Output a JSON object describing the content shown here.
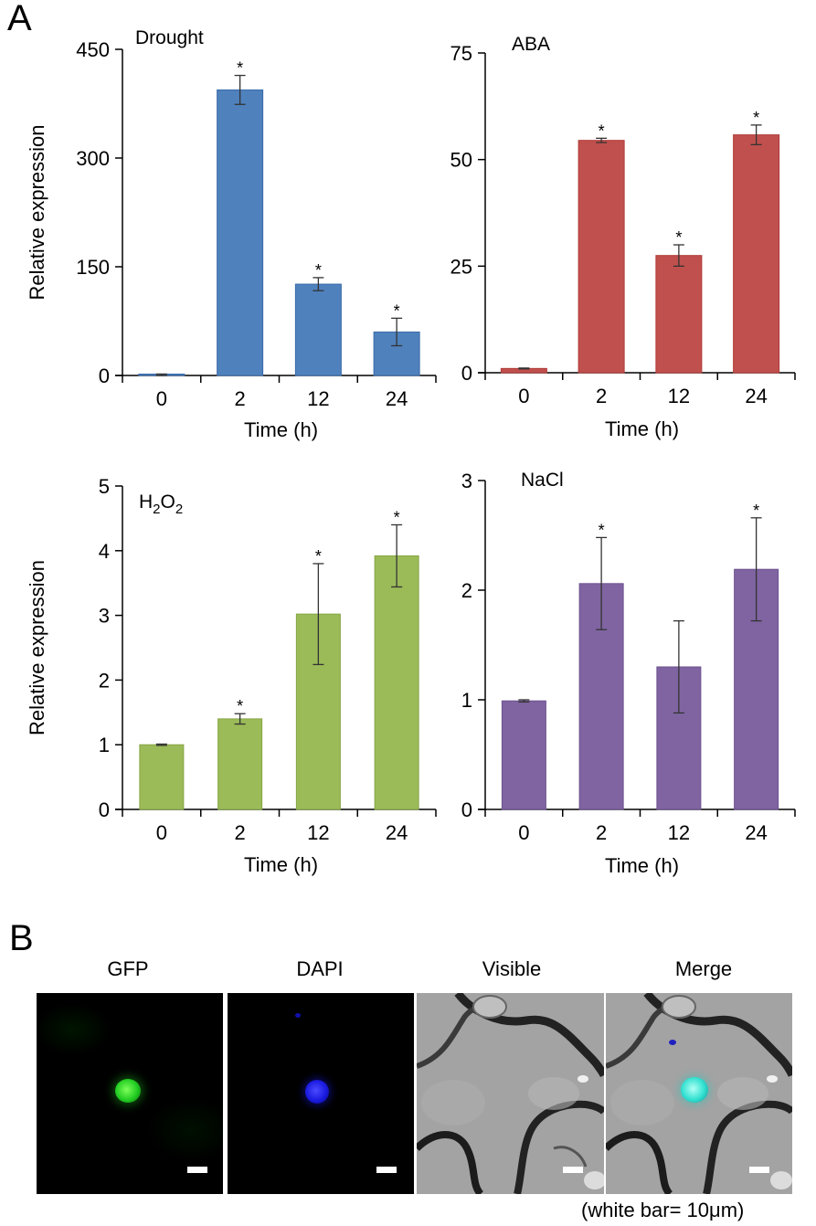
{
  "figure": {
    "panel_a_label": "A",
    "panel_b_label": "B"
  },
  "chart_data": [
    {
      "type": "bar",
      "title": "Drought",
      "categories": [
        "0",
        "2",
        "12",
        "24"
      ],
      "values": [
        1,
        394,
        126,
        60
      ],
      "errors": [
        1,
        20,
        9,
        19
      ],
      "significant": [
        false,
        true,
        true,
        true
      ],
      "significance_marker": "*",
      "xlabel": "Time (h)",
      "ylabel": "Relative expression",
      "ylim": [
        0,
        450
      ],
      "yticks": [
        0,
        150,
        300,
        450
      ],
      "color": "#4f81bd",
      "edge": "#3a6aa8"
    },
    {
      "type": "bar",
      "title": "ABA",
      "categories": [
        "0",
        "2",
        "12",
        "24"
      ],
      "values": [
        1,
        54.5,
        27.5,
        55.8
      ],
      "errors": [
        0.1,
        0.5,
        2.5,
        2.3
      ],
      "significant": [
        false,
        true,
        true,
        true
      ],
      "significance_marker": "*",
      "xlabel": "Time (h)",
      "ylabel": "",
      "ylim": [
        0,
        75
      ],
      "yticks": [
        0,
        25,
        50,
        75
      ],
      "color": "#c0504d",
      "edge": "#b03a37"
    },
    {
      "type": "bar",
      "title_main": "H",
      "title_sub1": "2",
      "title_mid": "O",
      "title_sub2": "2",
      "categories": [
        "0",
        "2",
        "12",
        "24"
      ],
      "values": [
        1,
        1.4,
        3.02,
        3.92
      ],
      "errors": [
        0.01,
        0.08,
        0.78,
        0.48
      ],
      "significant": [
        false,
        true,
        true,
        true
      ],
      "significance_marker": "*",
      "xlabel": "Time (h)",
      "ylabel": "Relative expression",
      "ylim": [
        0,
        5
      ],
      "yticks": [
        0,
        1,
        2,
        3,
        4,
        5
      ],
      "color": "#9bbb59",
      "edge": "#86a543"
    },
    {
      "type": "bar",
      "title": "NaCl",
      "categories": [
        "0",
        "2",
        "12",
        "24"
      ],
      "values": [
        0.99,
        2.06,
        1.3,
        2.19
      ],
      "errors": [
        0.01,
        0.42,
        0.42,
        0.47
      ],
      "significant": [
        false,
        true,
        false,
        true
      ],
      "significance_marker": "*",
      "xlabel": "Time (h)",
      "ylabel": "",
      "ylim": [
        0,
        3
      ],
      "yticks": [
        0,
        1,
        2,
        3
      ],
      "color": "#8064a2",
      "edge": "#6c518f"
    }
  ],
  "microscopy": {
    "labels": [
      "GFP",
      "DAPI",
      "Visible",
      "Merge"
    ],
    "caption": "(white bar= 10μm)"
  }
}
